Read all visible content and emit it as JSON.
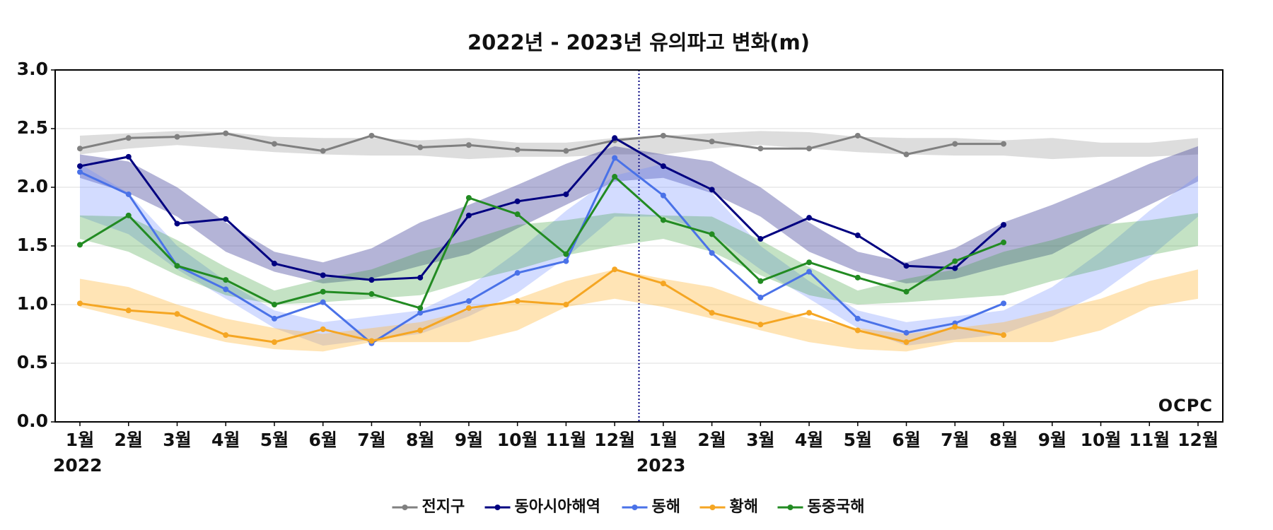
{
  "chart_data": {
    "type": "line",
    "title": "2022년 - 2023년 유의파고 변화(m)",
    "categories": [
      "1월",
      "2월",
      "3월",
      "4월",
      "5월",
      "6월",
      "7월",
      "8월",
      "9월",
      "10월",
      "11월",
      "12월",
      "1월",
      "2월",
      "3월",
      "4월",
      "5월",
      "6월",
      "7월",
      "8월",
      "9월",
      "10월",
      "11월",
      "12월"
    ],
    "year_labels": [
      "2022",
      "2023"
    ],
    "logo": "OCPC",
    "ylim": [
      0,
      3
    ],
    "yticks": [
      {
        "value": 0,
        "label": "0.0"
      },
      {
        "value": 0.5,
        "label": "0.5"
      },
      {
        "value": 1,
        "label": "1.0"
      },
      {
        "value": 1.5,
        "label": "1.5"
      },
      {
        "value": 2,
        "label": "2.0"
      },
      {
        "value": 2.5,
        "label": "2.5"
      },
      {
        "value": 3,
        "label": "3.0"
      }
    ],
    "grid": true,
    "legend": "bottom",
    "series": [
      {
        "name": "전지구",
        "color": "#808080",
        "band_color": "rgba(170,170,170,0.4)",
        "values": [
          2.33,
          2.42,
          2.43,
          2.46,
          2.37,
          2.31,
          2.44,
          2.34,
          2.36,
          2.32,
          2.31,
          2.4,
          2.44,
          2.39,
          2.33,
          2.33,
          2.44,
          2.28,
          2.37,
          2.37,
          null,
          null,
          null,
          null
        ],
        "band_high": [
          2.44,
          2.46,
          2.48,
          2.47,
          2.43,
          2.42,
          2.42,
          2.4,
          2.42,
          2.38,
          2.38,
          2.42,
          2.44,
          2.46,
          2.48,
          2.47,
          2.43,
          2.42,
          2.42,
          2.4,
          2.42,
          2.38,
          2.38,
          2.42
        ],
        "band_low": [
          2.28,
          2.33,
          2.36,
          2.33,
          2.3,
          2.28,
          2.27,
          2.27,
          2.24,
          2.26,
          2.26,
          2.28,
          2.28,
          2.33,
          2.36,
          2.33,
          2.3,
          2.28,
          2.27,
          2.27,
          2.24,
          2.26,
          2.26,
          2.28
        ]
      },
      {
        "name": "동아시아해역",
        "color": "#000080",
        "band_color": "rgba(40,40,140,0.35)",
        "values": [
          2.18,
          2.26,
          1.69,
          1.73,
          1.35,
          1.25,
          1.21,
          1.23,
          1.76,
          1.88,
          1.94,
          2.42,
          2.18,
          1.98,
          1.56,
          1.74,
          1.59,
          1.33,
          1.31,
          1.68,
          null,
          null,
          null,
          null
        ],
        "band_high": [
          2.28,
          2.22,
          2.0,
          1.7,
          1.45,
          1.36,
          1.48,
          1.7,
          1.85,
          2.02,
          2.2,
          2.35,
          2.28,
          2.22,
          2.0,
          1.7,
          1.45,
          1.36,
          1.48,
          1.7,
          1.85,
          2.02,
          2.2,
          2.35
        ],
        "band_low": [
          2.08,
          1.95,
          1.75,
          1.45,
          1.28,
          1.18,
          1.22,
          1.33,
          1.43,
          1.65,
          1.85,
          2.05,
          2.08,
          1.95,
          1.75,
          1.45,
          1.28,
          1.18,
          1.22,
          1.33,
          1.43,
          1.65,
          1.85,
          2.05
        ]
      },
      {
        "name": "동해",
        "color": "#4a72e8",
        "band_color": "rgba(110,140,255,0.3)",
        "values": [
          2.13,
          1.94,
          1.33,
          1.13,
          0.88,
          1.02,
          0.67,
          0.93,
          1.03,
          1.27,
          1.37,
          2.25,
          1.93,
          1.44,
          1.06,
          1.28,
          0.88,
          0.76,
          0.84,
          1.01,
          null,
          null,
          null,
          null
        ],
        "band_high": [
          2.2,
          1.95,
          1.5,
          1.2,
          0.95,
          0.85,
          0.9,
          0.95,
          1.15,
          1.45,
          1.8,
          2.1,
          2.2,
          1.95,
          1.5,
          1.2,
          0.95,
          0.85,
          0.9,
          0.95,
          1.15,
          1.45,
          1.8,
          2.1
        ],
        "band_low": [
          1.75,
          1.6,
          1.3,
          1.05,
          0.8,
          0.65,
          0.7,
          0.75,
          0.9,
          1.1,
          1.4,
          1.75,
          1.75,
          1.6,
          1.3,
          1.05,
          0.8,
          0.65,
          0.7,
          0.75,
          0.9,
          1.1,
          1.4,
          1.75
        ]
      },
      {
        "name": "황해",
        "color": "#f5a623",
        "band_color": "rgba(255,185,60,0.38)",
        "values": [
          1.01,
          0.95,
          0.92,
          0.74,
          0.68,
          0.79,
          0.69,
          0.78,
          0.97,
          1.03,
          1.0,
          1.3,
          1.18,
          0.93,
          0.83,
          0.93,
          0.78,
          0.68,
          0.81,
          0.74,
          null,
          null,
          null,
          null
        ],
        "band_high": [
          1.22,
          1.15,
          1.0,
          0.88,
          0.8,
          0.75,
          0.8,
          0.85,
          0.95,
          1.05,
          1.2,
          1.3,
          1.22,
          1.15,
          1.0,
          0.88,
          0.8,
          0.75,
          0.8,
          0.85,
          0.95,
          1.05,
          1.2,
          1.3
        ],
        "band_low": [
          0.98,
          0.88,
          0.78,
          0.68,
          0.62,
          0.6,
          0.68,
          0.68,
          0.68,
          0.78,
          0.98,
          1.05,
          0.98,
          0.88,
          0.78,
          0.68,
          0.62,
          0.6,
          0.68,
          0.68,
          0.68,
          0.78,
          0.98,
          1.05
        ]
      },
      {
        "name": "동중국해",
        "color": "#228b22",
        "band_color": "rgba(60,160,60,0.3)",
        "values": [
          1.51,
          1.76,
          1.33,
          1.21,
          1.0,
          1.11,
          1.09,
          0.97,
          1.91,
          1.77,
          1.43,
          2.09,
          1.72,
          1.6,
          1.2,
          1.36,
          1.23,
          1.11,
          1.37,
          1.53,
          null,
          null,
          null,
          null
        ],
        "band_high": [
          1.76,
          1.75,
          1.55,
          1.32,
          1.12,
          1.22,
          1.3,
          1.45,
          1.55,
          1.68,
          1.72,
          1.78,
          1.76,
          1.75,
          1.55,
          1.32,
          1.12,
          1.22,
          1.3,
          1.45,
          1.55,
          1.68,
          1.72,
          1.78
        ],
        "band_low": [
          1.56,
          1.45,
          1.25,
          1.08,
          1.0,
          1.02,
          1.05,
          1.08,
          1.2,
          1.3,
          1.42,
          1.5,
          1.56,
          1.45,
          1.25,
          1.08,
          1.0,
          1.02,
          1.05,
          1.08,
          1.2,
          1.3,
          1.42,
          1.5
        ]
      }
    ]
  }
}
